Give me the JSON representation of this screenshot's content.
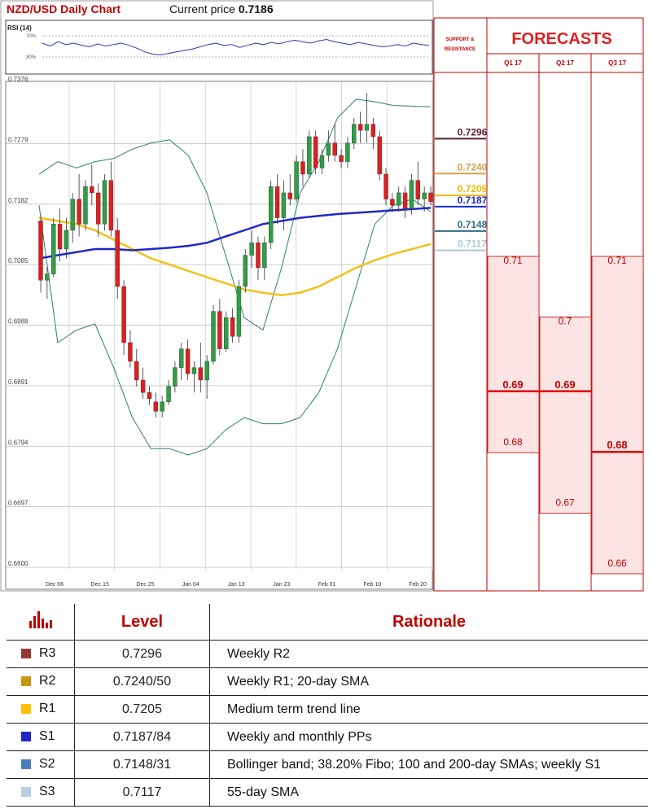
{
  "header": {
    "title": "NZD/USD Daily Chart",
    "current_price_label": "Current price",
    "current_price": "0.7186"
  },
  "rsi": {
    "label": "RSI (14)",
    "levels": [
      "70%",
      "30%"
    ]
  },
  "chart_data": [
    {
      "type": "candlestick",
      "title": "NZD/USD Daily Chart",
      "y_ticks": [
        "0.7376",
        "0.7279",
        "0.7182",
        "0.7085",
        "0.6988",
        "0.6891",
        "0.6794",
        "0.6697",
        "0.6600"
      ],
      "ylim": [
        0.66,
        0.7376
      ],
      "x_ticks": [
        "Dec 06",
        "Dec 15",
        "Dec 25",
        "Jan 04",
        "Jan 13",
        "Jan 23",
        "Feb 01",
        "Feb 10",
        "Feb 20"
      ],
      "grid": true,
      "candles": [
        [
          0.7155,
          0.7165,
          0.704,
          0.706
        ],
        [
          0.706,
          0.708,
          0.703,
          0.707
        ],
        [
          0.707,
          0.716,
          0.7065,
          0.715
        ],
        [
          0.715,
          0.7175,
          0.709,
          0.711
        ],
        [
          0.711,
          0.716,
          0.7095,
          0.714
        ],
        [
          0.714,
          0.72,
          0.712,
          0.719
        ],
        [
          0.719,
          0.723,
          0.713,
          0.715
        ],
        [
          0.715,
          0.722,
          0.714,
          0.721
        ],
        [
          0.721,
          0.7245,
          0.718,
          0.72
        ],
        [
          0.72,
          0.7215,
          0.713,
          0.715
        ],
        [
          0.715,
          0.723,
          0.714,
          0.722
        ],
        [
          0.722,
          0.725,
          0.713,
          0.714
        ],
        [
          0.714,
          0.716,
          0.703,
          0.705
        ],
        [
          0.705,
          0.706,
          0.694,
          0.696
        ],
        [
          0.696,
          0.698,
          0.692,
          0.693
        ],
        [
          0.693,
          0.695,
          0.689,
          0.69
        ],
        [
          0.69,
          0.692,
          0.687,
          0.688
        ],
        [
          0.688,
          0.689,
          0.686,
          0.687
        ],
        [
          0.6865,
          0.688,
          0.684,
          0.685
        ],
        [
          0.685,
          0.6875,
          0.684,
          0.6865
        ],
        [
          0.6865,
          0.69,
          0.686,
          0.689
        ],
        [
          0.689,
          0.693,
          0.688,
          0.692
        ],
        [
          0.692,
          0.696,
          0.69,
          0.695
        ],
        [
          0.695,
          0.6965,
          0.69,
          0.691
        ],
        [
          0.691,
          0.693,
          0.688,
          0.692
        ],
        [
          0.692,
          0.696,
          0.688,
          0.69
        ],
        [
          0.69,
          0.694,
          0.687,
          0.693
        ],
        [
          0.693,
          0.702,
          0.6925,
          0.701
        ],
        [
          0.701,
          0.703,
          0.694,
          0.695
        ],
        [
          0.695,
          0.701,
          0.6945,
          0.7
        ],
        [
          0.7,
          0.7015,
          0.696,
          0.697
        ],
        [
          0.697,
          0.706,
          0.696,
          0.705
        ],
        [
          0.705,
          0.711,
          0.704,
          0.71
        ],
        [
          0.71,
          0.714,
          0.708,
          0.712
        ],
        [
          0.712,
          0.713,
          0.706,
          0.708
        ],
        [
          0.708,
          0.713,
          0.706,
          0.712
        ],
        [
          0.712,
          0.722,
          0.711,
          0.721
        ],
        [
          0.721,
          0.723,
          0.715,
          0.716
        ],
        [
          0.716,
          0.722,
          0.714,
          0.72
        ],
        [
          0.72,
          0.723,
          0.718,
          0.719
        ],
        [
          0.719,
          0.726,
          0.7185,
          0.725
        ],
        [
          0.725,
          0.727,
          0.721,
          0.723
        ],
        [
          0.723,
          0.73,
          0.7225,
          0.729
        ],
        [
          0.729,
          0.73,
          0.723,
          0.724
        ],
        [
          0.724,
          0.727,
          0.723,
          0.726
        ],
        [
          0.726,
          0.73,
          0.725,
          0.728
        ],
        [
          0.728,
          0.731,
          0.725,
          0.726
        ],
        [
          0.726,
          0.727,
          0.724,
          0.725
        ],
        [
          0.725,
          0.729,
          0.724,
          0.728
        ],
        [
          0.728,
          0.732,
          0.727,
          0.731
        ],
        [
          0.731,
          0.733,
          0.728,
          0.73
        ],
        [
          0.73,
          0.736,
          0.728,
          0.731
        ],
        [
          0.731,
          0.732,
          0.727,
          0.729
        ],
        [
          0.729,
          0.73,
          0.722,
          0.723
        ],
        [
          0.723,
          0.724,
          0.718,
          0.719
        ],
        [
          0.719,
          0.72,
          0.717,
          0.718
        ],
        [
          0.718,
          0.721,
          0.717,
          0.72
        ],
        [
          0.72,
          0.721,
          0.716,
          0.7175
        ],
        [
          0.7175,
          0.723,
          0.7165,
          0.722
        ],
        [
          0.722,
          0.725,
          0.718,
          0.719
        ],
        [
          0.719,
          0.721,
          0.717,
          0.72
        ],
        [
          0.72,
          0.721,
          0.718,
          0.7186
        ]
      ],
      "sma_55": [
        0.716,
        0.7155,
        0.715,
        0.714,
        0.7125,
        0.711,
        0.7095,
        0.7085,
        0.7075,
        0.7065,
        0.7055,
        0.7045,
        0.704,
        0.7036,
        0.704,
        0.705,
        0.7065,
        0.708,
        0.7092,
        0.7102,
        0.711,
        0.7118
      ],
      "sma_200": [
        0.7095,
        0.71,
        0.7105,
        0.711,
        0.711,
        0.7108,
        0.711,
        0.7112,
        0.7115,
        0.712,
        0.713,
        0.714,
        0.715,
        0.7155,
        0.716,
        0.7163,
        0.7166,
        0.7168,
        0.717,
        0.7172,
        0.7174,
        0.7176
      ],
      "bollinger_upper": [
        0.723,
        0.725,
        0.724,
        0.725,
        0.7255,
        0.727,
        0.728,
        0.7285,
        0.726,
        0.72,
        0.71,
        0.7,
        0.698,
        0.708,
        0.72,
        0.725,
        0.732,
        0.735,
        0.7346,
        0.734,
        0.7339,
        0.7338
      ],
      "bollinger_lower": [
        0.718,
        0.696,
        0.698,
        0.699,
        0.692,
        0.684,
        0.679,
        0.679,
        0.678,
        0.679,
        0.682,
        0.684,
        0.683,
        0.683,
        0.684,
        0.688,
        0.695,
        0.705,
        0.715,
        0.718,
        0.719,
        0.717
      ]
    }
  ],
  "support_resistance": {
    "header": "SUPPORT & RESISTANCE",
    "levels": [
      {
        "label": "0.7296",
        "value": 0.7296,
        "color": "#5a1e2e"
      },
      {
        "label": "0.7240",
        "value": 0.724,
        "color": "#d4a24c"
      },
      {
        "label": "0.7205",
        "value": 0.7205,
        "color": "#f2b900"
      },
      {
        "label": "0.7187",
        "value": 0.7187,
        "color": "#1a2bd4"
      },
      {
        "label": "0.7148",
        "value": 0.7148,
        "color": "#2f6b8a"
      },
      {
        "label": "0.7117",
        "value": 0.7117,
        "color": "#a9c9d6"
      }
    ]
  },
  "forecasts": {
    "title": "FORECASTS",
    "quarters": [
      {
        "label": "Q1 17",
        "high": "0.71",
        "mid": "0.69",
        "low": "0.68",
        "high_v": 0.71,
        "mid_v": 0.69,
        "low_v": 0.68
      },
      {
        "label": "Q2 17",
        "high": "0.7",
        "mid": "0.69",
        "low": "0.67",
        "high_v": 0.7,
        "mid_v": 0.69,
        "low_v": 0.67
      },
      {
        "label": "Q3 17",
        "high": "0.71",
        "mid": "0.68",
        "low": "0.66",
        "high_v": 0.71,
        "mid_v": 0.68,
        "low_v": 0.66
      }
    ]
  },
  "table": {
    "headers": [
      "",
      "Level",
      "Rationale"
    ],
    "rows": [
      {
        "tag": "R3",
        "color": "#953735",
        "level": "0.7296",
        "rationale": "Weekly R2"
      },
      {
        "tag": "R2",
        "color": "#c8960c",
        "level": "0.7240/50",
        "rationale": "Weekly R1; 20-day SMA"
      },
      {
        "tag": "R1",
        "color": "#ffc000",
        "level": "0.7205",
        "rationale": "Medium term trend line"
      },
      {
        "tag": "S1",
        "color": "#1f27c9",
        "level": "0.7187/84",
        "rationale": "Weekly and monthly PPs"
      },
      {
        "tag": "S2",
        "color": "#4a7ebb",
        "level": "0.7148/31",
        "rationale": "Bollinger band; 38.20% Fibo; 100 and 200-day SMAs; weekly S1"
      },
      {
        "tag": "S3",
        "color": "#b9cde5",
        "level": "0.7117",
        "rationale": "55-day SMA"
      }
    ]
  }
}
